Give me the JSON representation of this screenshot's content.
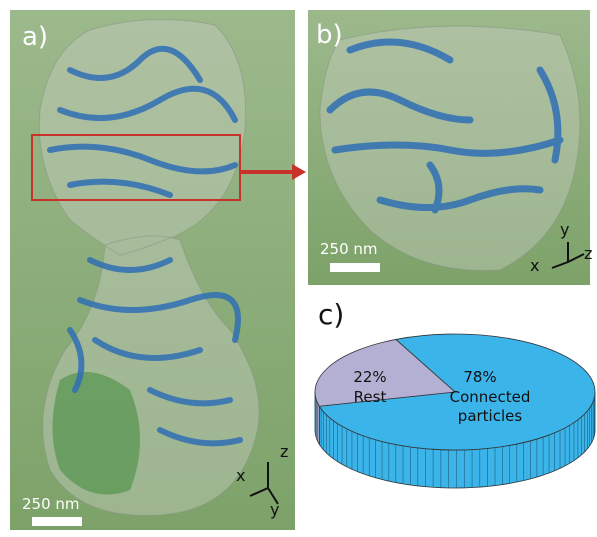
{
  "panels": [
    {
      "label": "a)",
      "scale_bar": "250 nm",
      "axes": [
        "x",
        "y",
        "z"
      ]
    },
    {
      "label": "b)",
      "scale_bar": "250 nm",
      "axes": [
        "x",
        "y",
        "z"
      ]
    },
    {
      "label": "c)"
    }
  ],
  "chart_data": {
    "type": "pie",
    "categories": [
      "Connected particles",
      "Rest"
    ],
    "values": [
      78,
      22
    ],
    "value_labels": [
      "78%",
      "22%"
    ],
    "colors": [
      "#3bb4ea",
      "#b4b0d4"
    ]
  }
}
